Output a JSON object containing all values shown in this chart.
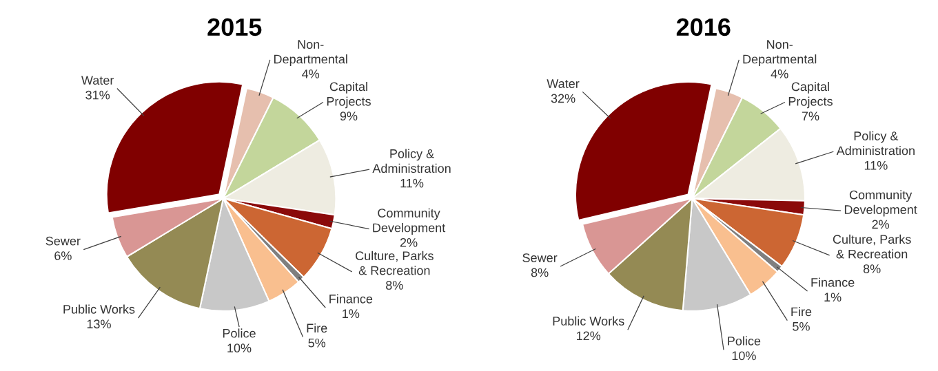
{
  "chart_data": [
    {
      "type": "pie",
      "title": "2015",
      "categories": [
        "Non-\nDepartmental",
        "Capital\nProjects",
        "Policy &\nAdministration",
        "Community\nDevelopment",
        "Culture, Parks\n& Recreation",
        "Finance",
        "Fire",
        "Police",
        "Public Works",
        "Sewer",
        "Water"
      ],
      "values": [
        4,
        9,
        11,
        2,
        8,
        1,
        5,
        10,
        13,
        6,
        31
      ],
      "value_labels": [
        "4%",
        "9%",
        "11%",
        "2%",
        "8%",
        "1%",
        "5%",
        "10%",
        "13%",
        "6%",
        "31%"
      ],
      "colors": [
        "#e6bfae",
        "#c3d69b",
        "#eeece1",
        "#8b0a0a",
        "#cc6633",
        "#7f7f7f",
        "#f9bf8f",
        "#c8c8c8",
        "#948a54",
        "#d99694",
        "#800000"
      ],
      "legend": false
    },
    {
      "type": "pie",
      "title": "2016",
      "categories": [
        "Non-\nDepartmental",
        "Capital\nProjects",
        "Policy &\nAdministration",
        "Community\nDevelopment",
        "Culture, Parks\n& Recreation",
        "Finance",
        "Fire",
        "Police",
        "Public Works",
        "Sewer",
        "Water"
      ],
      "values": [
        4,
        7,
        11,
        2,
        8,
        1,
        5,
        10,
        12,
        8,
        32
      ],
      "value_labels": [
        "4%",
        "7%",
        "11%",
        "2%",
        "8%",
        "1%",
        "5%",
        "10%",
        "12%",
        "8%",
        "32%"
      ],
      "colors": [
        "#e6bfae",
        "#c3d69b",
        "#eeece1",
        "#8b0a0a",
        "#cc6633",
        "#7f7f7f",
        "#f9bf8f",
        "#c8c8c8",
        "#948a54",
        "#d99694",
        "#800000"
      ],
      "legend": false
    }
  ]
}
